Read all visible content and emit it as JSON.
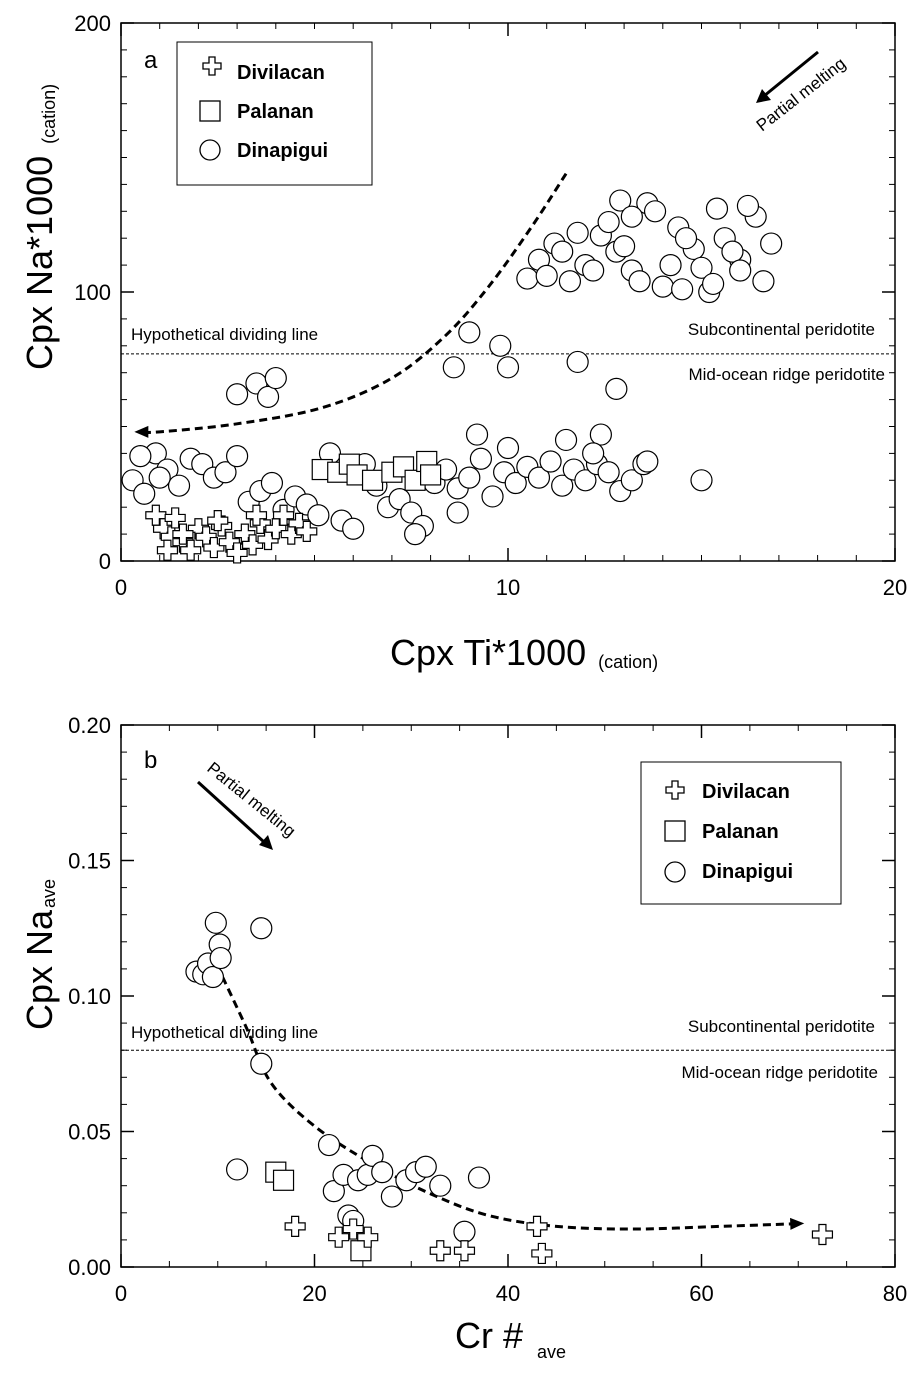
{
  "chart_data": [
    {
      "type": "scatter",
      "panel_label": "a",
      "xlabel": "Cpx Ti*1000",
      "xlabel_sub": "(cation)",
      "ylabel": "Cpx Na*1000",
      "ylabel_sub": "(cation)",
      "xlim": [
        0,
        20
      ],
      "ylim": [
        0,
        200
      ],
      "xticks": [
        0,
        10,
        20
      ],
      "xtick_labels": [
        "0",
        "10",
        "20"
      ],
      "yticks": [
        0,
        100,
        200
      ],
      "ytick_labels": [
        "0",
        "100",
        "200"
      ],
      "legend_position": "top-left",
      "legend": [
        {
          "label": "Divilacan",
          "marker": "cross"
        },
        {
          "label": "Palanan",
          "marker": "square"
        },
        {
          "label": "Dinapigui",
          "marker": "circle"
        }
      ],
      "annotations": {
        "arrow_label": "Partial melting",
        "divider_label": "Hypothetical dividing line",
        "upper_label": "Subcontinental peridotite",
        "lower_label": "Mid-ocean ridge peridotite"
      },
      "divider_y": 77,
      "trend_curve": [
        [
          11.5,
          144
        ],
        [
          10.6,
          124
        ],
        [
          9.5,
          102
        ],
        [
          8.4,
          84
        ],
        [
          7.0,
          68
        ],
        [
          5.2,
          57
        ],
        [
          3.0,
          51
        ],
        [
          1.0,
          48
        ],
        [
          0.5,
          48
        ]
      ],
      "series": [
        {
          "name": "Divilacan",
          "marker": "cross",
          "points": [
            [
              0.9,
              17
            ],
            [
              1.1,
              12
            ],
            [
              1.3,
              9
            ],
            [
              1.4,
              16
            ],
            [
              1.6,
              7
            ],
            [
              1.8,
              4
            ],
            [
              2.0,
              12
            ],
            [
              2.2,
              9
            ],
            [
              2.4,
              5
            ],
            [
              2.6,
              13
            ],
            [
              2.8,
              7
            ],
            [
              3.0,
              3
            ],
            [
              3.2,
              10
            ],
            [
              3.4,
              6
            ],
            [
              3.6,
              14
            ],
            [
              3.8,
              8
            ],
            [
              4.0,
              12
            ],
            [
              4.2,
              17
            ],
            [
              4.4,
              10
            ],
            [
              4.6,
              14
            ],
            [
              1.2,
              4
            ],
            [
              2.5,
              15
            ],
            [
              3.5,
              17
            ],
            [
              4.8,
              11
            ],
            [
              1.6,
              10
            ]
          ]
        },
        {
          "name": "Palanan",
          "marker": "square",
          "points": [
            [
              5.2,
              34
            ],
            [
              5.6,
              33
            ],
            [
              5.9,
              36
            ],
            [
              6.1,
              32
            ],
            [
              6.5,
              30
            ],
            [
              7.0,
              33
            ],
            [
              7.3,
              35
            ],
            [
              7.6,
              30
            ],
            [
              7.9,
              37
            ],
            [
              8.0,
              32
            ]
          ]
        },
        {
          "name": "Dinapigui",
          "marker": "circle",
          "points": [
            [
              0.3,
              30
            ],
            [
              0.6,
              25
            ],
            [
              0.9,
              40
            ],
            [
              1.2,
              34
            ],
            [
              1.5,
              28
            ],
            [
              1.8,
              38
            ],
            [
              2.1,
              36
            ],
            [
              2.4,
              31
            ],
            [
              2.7,
              33
            ],
            [
              3.0,
              39
            ],
            [
              3.3,
              22
            ],
            [
              3.6,
              26
            ],
            [
              3.9,
              29
            ],
            [
              4.2,
              19
            ],
            [
              4.5,
              24
            ],
            [
              4.8,
              21
            ],
            [
              5.1,
              17
            ],
            [
              5.4,
              40
            ],
            [
              5.7,
              15
            ],
            [
              6.0,
              12
            ],
            [
              6.3,
              36
            ],
            [
              6.6,
              28
            ],
            [
              6.9,
              20
            ],
            [
              7.2,
              23
            ],
            [
              7.5,
              18
            ],
            [
              7.8,
              13
            ],
            [
              8.1,
              29
            ],
            [
              8.4,
              34
            ],
            [
              8.7,
              27
            ],
            [
              9.0,
              31
            ],
            [
              9.3,
              38
            ],
            [
              9.6,
              24
            ],
            [
              9.9,
              33
            ],
            [
              10.2,
              29
            ],
            [
              10.5,
              35
            ],
            [
              10.8,
              31
            ],
            [
              11.1,
              37
            ],
            [
              11.4,
              28
            ],
            [
              11.7,
              34
            ],
            [
              12.0,
              30
            ],
            [
              12.3,
              36
            ],
            [
              12.6,
              33
            ],
            [
              12.9,
              26
            ],
            [
              13.2,
              30
            ],
            [
              13.5,
              36
            ],
            [
              0.5,
              39
            ],
            [
              1.0,
              31
            ],
            [
              7.6,
              10
            ],
            [
              8.7,
              18
            ],
            [
              9.2,
              47
            ],
            [
              10.0,
              42
            ],
            [
              11.5,
              45
            ],
            [
              12.4,
              47
            ],
            [
              13.6,
              37
            ],
            [
              15.0,
              30
            ],
            [
              12.2,
              40
            ],
            [
              3.0,
              62
            ],
            [
              3.5,
              66
            ],
            [
              3.8,
              61
            ],
            [
              4.0,
              68
            ],
            [
              9.0,
              85
            ],
            [
              9.8,
              80
            ],
            [
              10.0,
              72
            ],
            [
              11.8,
              74
            ],
            [
              12.8,
              64
            ],
            [
              8.6,
              72
            ],
            [
              10.5,
              105
            ],
            [
              10.8,
              112
            ],
            [
              11.2,
              118
            ],
            [
              11.6,
              104
            ],
            [
              12.0,
              110
            ],
            [
              12.4,
              121
            ],
            [
              12.8,
              115
            ],
            [
              13.2,
              108
            ],
            [
              13.6,
              133
            ],
            [
              14.0,
              102
            ],
            [
              14.4,
              124
            ],
            [
              14.8,
              116
            ],
            [
              15.2,
              100
            ],
            [
              15.6,
              120
            ],
            [
              16.0,
              112
            ],
            [
              16.4,
              128
            ],
            [
              16.8,
              118
            ],
            [
              11.0,
              106
            ],
            [
              11.4,
              115
            ],
            [
              11.8,
              122
            ],
            [
              12.2,
              108
            ],
            [
              12.6,
              126
            ],
            [
              13.0,
              117
            ],
            [
              13.4,
              104
            ],
            [
              13.8,
              130
            ],
            [
              14.2,
              110
            ],
            [
              14.6,
              120
            ],
            [
              15.0,
              109
            ],
            [
              15.4,
              131
            ],
            [
              15.8,
              115
            ],
            [
              16.2,
              132
            ],
            [
              16.6,
              104
            ],
            [
              12.9,
              134
            ],
            [
              13.2,
              128
            ],
            [
              14.5,
              101
            ],
            [
              15.3,
              103
            ],
            [
              16.0,
              108
            ]
          ]
        }
      ]
    },
    {
      "type": "scatter",
      "panel_label": "b",
      "xlabel": "Cr #",
      "xlabel_sub": "ave",
      "ylabel": "Cpx Na",
      "ylabel_sub": "ave",
      "xlim": [
        0,
        80
      ],
      "ylim": [
        0,
        0.2
      ],
      "xticks": [
        0,
        20,
        40,
        60,
        80
      ],
      "xtick_labels": [
        "0",
        "20",
        "40",
        "60",
        "80"
      ],
      "yticks": [
        0,
        0.05,
        0.1,
        0.15,
        0.2
      ],
      "ytick_labels": [
        "0.00",
        "0.05",
        "0.10",
        "0.15",
        "0.20"
      ],
      "legend_position": "top-right",
      "legend": [
        {
          "label": "Divilacan",
          "marker": "cross"
        },
        {
          "label": "Palanan",
          "marker": "square"
        },
        {
          "label": "Dinapigui",
          "marker": "circle"
        }
      ],
      "annotations": {
        "arrow_label": "Partial melting",
        "divider_label": "Hypothetical dividing line",
        "upper_label": "Subcontinental peridotite",
        "lower_label": "Mid-ocean ridge peridotite"
      },
      "divider_y": 0.08,
      "trend_curve": [
        [
          10.5,
          0.107
        ],
        [
          13.0,
          0.088
        ],
        [
          15.5,
          0.068
        ],
        [
          20.0,
          0.052
        ],
        [
          26.0,
          0.038
        ],
        [
          32.0,
          0.027
        ],
        [
          38.0,
          0.019
        ],
        [
          45.0,
          0.015
        ],
        [
          53.0,
          0.014
        ],
        [
          62.0,
          0.015
        ],
        [
          70.0,
          0.016
        ]
      ],
      "series": [
        {
          "name": "Divilacan",
          "marker": "cross",
          "points": [
            [
              18,
              0.015
            ],
            [
              22.5,
              0.011
            ],
            [
              24,
              0.014
            ],
            [
              25.5,
              0.011
            ],
            [
              33,
              0.006
            ],
            [
              35.5,
              0.006
            ],
            [
              43,
              0.015
            ],
            [
              43.5,
              0.005
            ],
            [
              72.5,
              0.012
            ]
          ]
        },
        {
          "name": "Palanan",
          "marker": "square",
          "points": [
            [
              16,
              0.035
            ],
            [
              16.8,
              0.032
            ],
            [
              24.8,
              0.006
            ]
          ]
        },
        {
          "name": "Dinapigui",
          "marker": "circle",
          "points": [
            [
              7.8,
              0.109
            ],
            [
              8.5,
              0.108
            ],
            [
              9,
              0.112
            ],
            [
              9.5,
              0.107
            ],
            [
              9.8,
              0.127
            ],
            [
              10.2,
              0.119
            ],
            [
              10.3,
              0.114
            ],
            [
              14.5,
              0.125
            ],
            [
              14.5,
              0.075
            ],
            [
              12,
              0.036
            ],
            [
              21.5,
              0.045
            ],
            [
              22,
              0.028
            ],
            [
              23,
              0.034
            ],
            [
              23.5,
              0.019
            ],
            [
              24,
              0.017
            ],
            [
              24.5,
              0.032
            ],
            [
              25.5,
              0.034
            ],
            [
              26,
              0.041
            ],
            [
              27,
              0.035
            ],
            [
              28,
              0.026
            ],
            [
              29.5,
              0.032
            ],
            [
              30.5,
              0.035
            ],
            [
              31.5,
              0.037
            ],
            [
              33,
              0.03
            ],
            [
              35.5,
              0.013
            ],
            [
              37,
              0.033
            ]
          ]
        }
      ]
    }
  ]
}
